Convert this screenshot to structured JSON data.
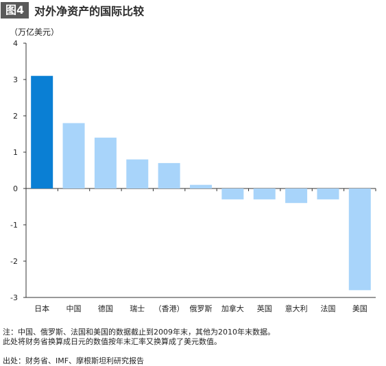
{
  "header": {
    "fig_label": "图4",
    "title": "对外净资产的国际比较"
  },
  "unit": "（万亿美元）",
  "colors": {
    "highlight": "#0a7fd4",
    "bar": "#a8d4fa",
    "axis": "#333333"
  },
  "chart_data": {
    "type": "bar",
    "title": "对外净资产的国际比较",
    "ylabel": "（万亿美元）",
    "categories": [
      "日本",
      "中国",
      "德国",
      "瑞士",
      "（香港）",
      "俄罗斯",
      "加拿大",
      "英国",
      "意大利",
      "法国",
      "美国"
    ],
    "values": [
      3.1,
      1.8,
      1.4,
      0.8,
      0.7,
      0.1,
      -0.3,
      -0.3,
      -0.4,
      -0.3,
      -2.8
    ],
    "highlight_index": 0,
    "ylim": [
      -3,
      4
    ],
    "yticks": [
      4,
      3,
      2,
      1,
      0,
      -1,
      -2,
      -3
    ],
    "grid": false
  },
  "notes": {
    "line1": "注：中国、俄罗斯、法国和美国的数据截止到2009年末，其他为2010年末数据。",
    "line2": "此处将财务省换算成日元的数值按年末汇率又换算成了美元数值。"
  },
  "source": "出处：财务省、IMF、摩根斯坦利研究报告"
}
